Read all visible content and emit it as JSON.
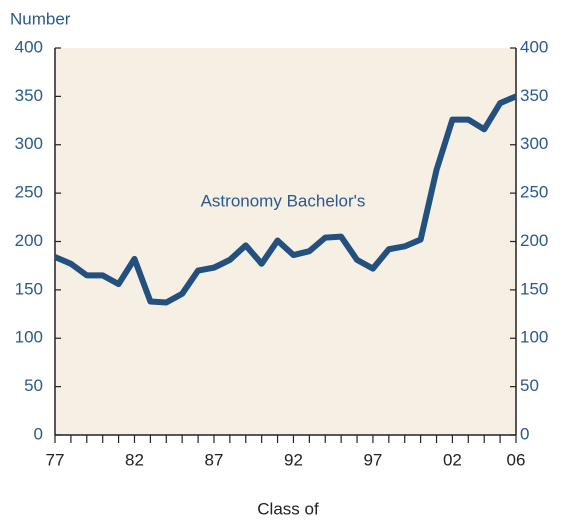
{
  "chart_data": {
    "type": "line",
    "y_label": "Number",
    "x_label": "Class of",
    "annotation": "Astronomy Bachelor's",
    "categories": [
      "77",
      null,
      null,
      null,
      null,
      "82",
      null,
      null,
      null,
      null,
      "87",
      null,
      null,
      null,
      null,
      "92",
      null,
      null,
      null,
      null,
      "97",
      null,
      null,
      null,
      null,
      "02",
      null,
      null,
      null,
      "06"
    ],
    "series": [
      {
        "name": "Astronomy Bachelor's",
        "color": "#23507e",
        "values": [
          184,
          177,
          165,
          165,
          156,
          182,
          138,
          137,
          146,
          170,
          173,
          181,
          196,
          177,
          201,
          186,
          190,
          204,
          205,
          181,
          172,
          192,
          195,
          202,
          274,
          326,
          326,
          316,
          343,
          350
        ]
      }
    ],
    "ylim": [
      0,
      400
    ],
    "yticks": [
      0,
      50,
      100,
      150,
      200,
      250,
      300,
      350,
      400
    ]
  }
}
